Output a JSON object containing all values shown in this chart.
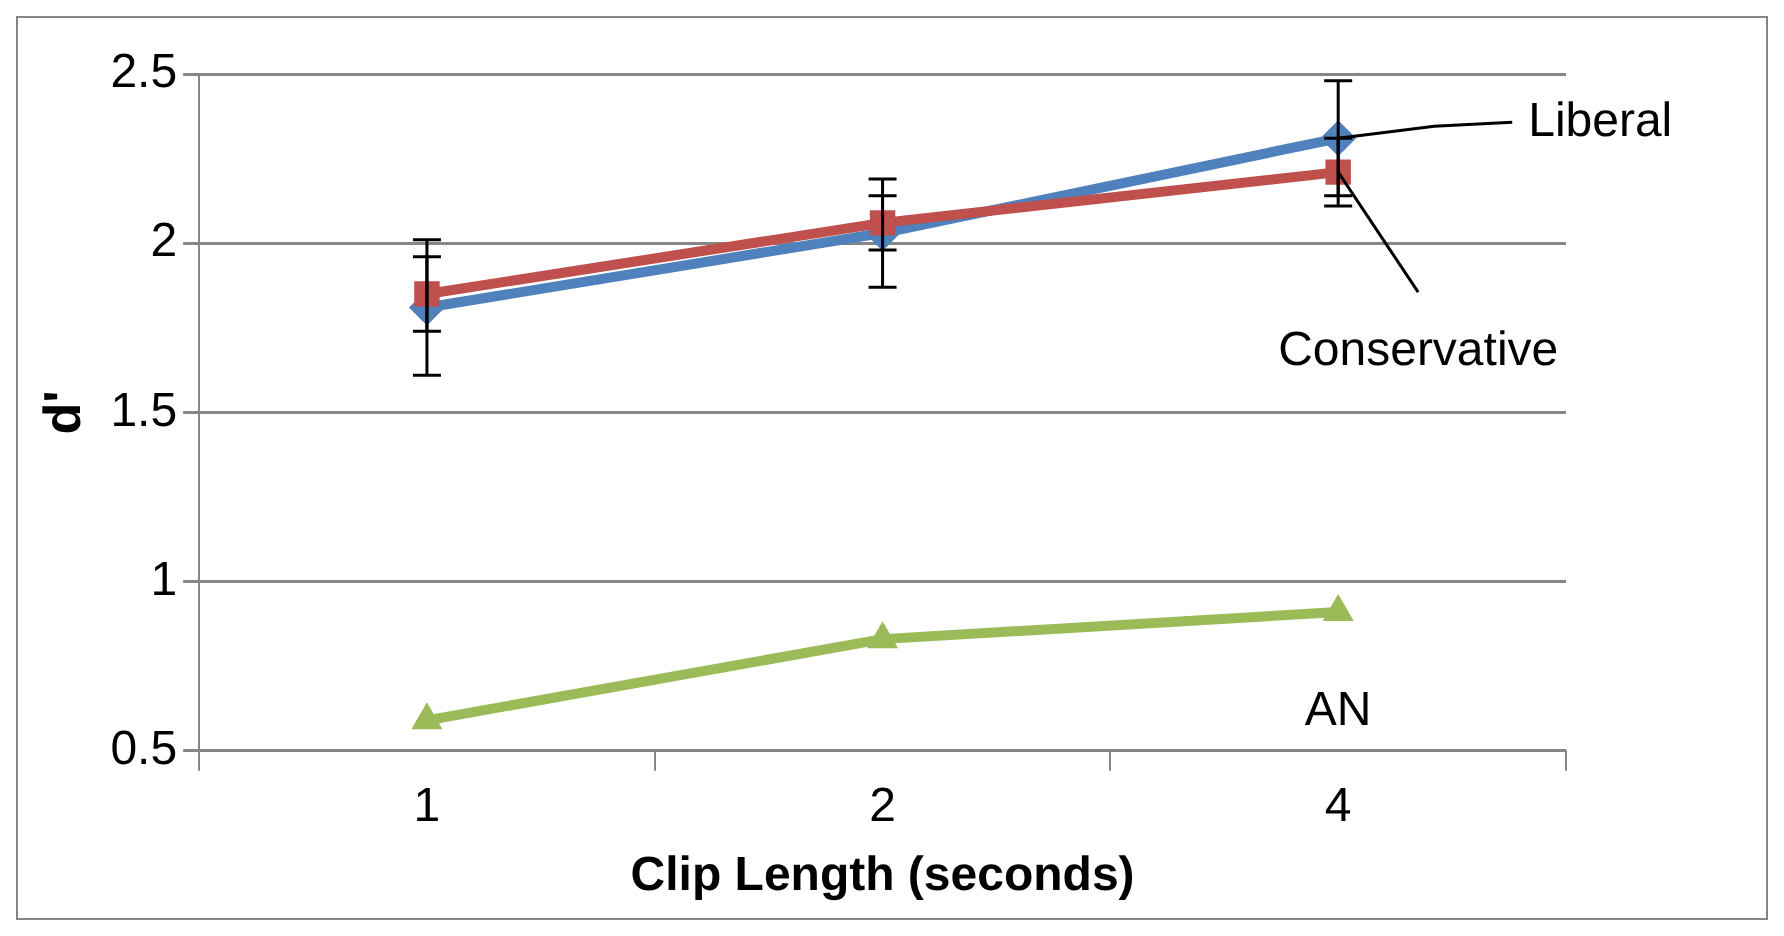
{
  "chart_data": {
    "type": "line",
    "xlabel": "Clip Length (seconds)",
    "ylabel": "d'",
    "categories": [
      "1",
      "2",
      "4"
    ],
    "series": [
      {
        "name": "Liberal",
        "color": "#4f81bd",
        "marker": "diamond",
        "values": [
          1.81,
          2.03,
          2.31
        ],
        "errors": [
          0.2,
          0.16,
          0.17
        ]
      },
      {
        "name": "Conservative",
        "color": "#c0504d",
        "marker": "square",
        "values": [
          1.85,
          2.06,
          2.21
        ],
        "errors": [
          0.11,
          0.08,
          0.1
        ]
      },
      {
        "name": "AN",
        "color": "#9bbb59",
        "marker": "triangle",
        "values": [
          0.59,
          0.83,
          0.91
        ]
      }
    ],
    "ylim": [
      0.5,
      2.5
    ],
    "yticks": [
      0.5,
      1,
      1.5,
      2,
      2.5
    ],
    "grid": "y",
    "legend": false,
    "line_style": "solid"
  }
}
